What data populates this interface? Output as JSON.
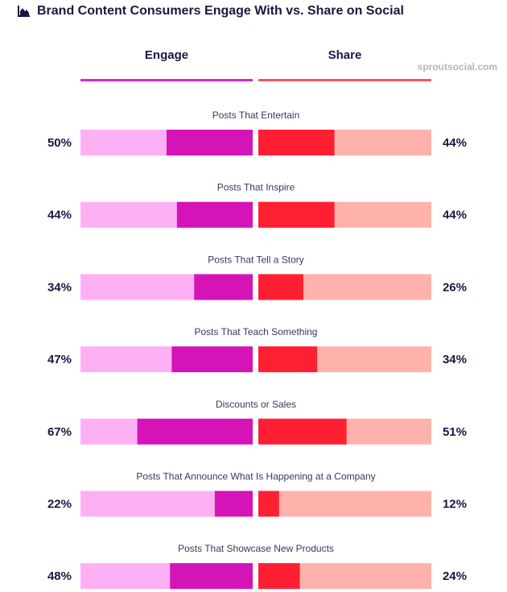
{
  "title": "Brand Content Consumers Engage With vs. Share on Social",
  "title_icon": "area-chart-icon",
  "source": "sproutsocial.com",
  "colors": {
    "engage_dark": "#d414b6",
    "engage_light": "#feb0f5",
    "share_dark": "#ff1f33",
    "share_light": "#ffb2ac",
    "engage_line": "#d629c3",
    "share_line": "#f0565c"
  },
  "chart_data": {
    "type": "bar",
    "title": "Brand Content Consumers Engage With vs. Share on Social",
    "orientation": "horizontal-diverging",
    "categories": [
      "Posts That Entertain",
      "Posts That Inspire",
      "Posts That Tell a Story",
      "Posts That Teach Something",
      "Discounts or Sales",
      "Posts That Announce What Is Happening at a Company",
      "Posts That Showcase New Products"
    ],
    "series": [
      {
        "name": "Engage",
        "values": [
          50,
          44,
          34,
          47,
          67,
          22,
          48
        ],
        "labels": [
          "50%",
          "44%",
          "34%",
          "47%",
          "67%",
          "22%",
          "48%"
        ]
      },
      {
        "name": "Share",
        "values": [
          44,
          44,
          26,
          34,
          51,
          12,
          24
        ],
        "labels": [
          "44%",
          "44%",
          "26%",
          "34%",
          "51%",
          "12%",
          "24%"
        ]
      }
    ],
    "xlim": [
      0,
      100
    ],
    "unit": "%",
    "grid": false,
    "legend": "top"
  }
}
